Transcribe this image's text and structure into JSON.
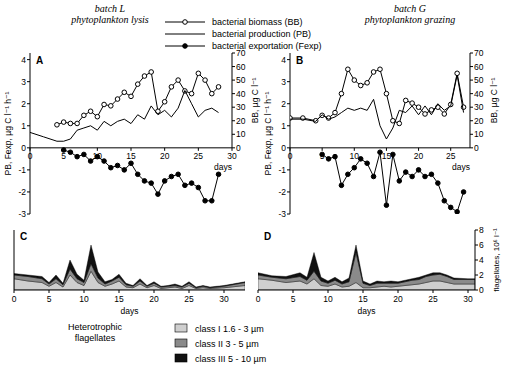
{
  "chart_data": [
    {
      "type": "line",
      "title": "batch L",
      "subtitle": "phytoplankton lysis",
      "annotations": [
        "A"
      ],
      "xlabel": "days",
      "ylabel": "PB, Fexp, µg C l⁻¹ h⁻¹",
      "y2label": "BB, µg C l⁻¹",
      "xlim": [
        0,
        30
      ],
      "xticks": [
        0,
        5,
        10,
        15,
        20,
        25,
        30
      ],
      "ylim": [
        -3,
        4.3
      ],
      "yticks": [
        -3,
        -2,
        -1,
        0,
        1,
        2,
        3,
        4
      ],
      "y2lim": [
        0,
        70
      ],
      "y2ticks": [
        0,
        10,
        20,
        30,
        40,
        50,
        60,
        70
      ],
      "legend": "top",
      "series": [
        {
          "name": "bacterial biomass (BB)",
          "axis": "y2",
          "color": "#000000",
          "marker": "open-circle",
          "line_style": "solid",
          "x": [
            4,
            5,
            6,
            7,
            8,
            9,
            10,
            11,
            12,
            13,
            14,
            15,
            16,
            17,
            18,
            19,
            20,
            21,
            22,
            23,
            24,
            25,
            26,
            27,
            28
          ],
          "values": [
            17,
            19,
            18,
            18,
            24,
            27,
            23,
            32,
            31,
            36,
            41,
            38,
            47,
            53,
            56,
            27,
            34,
            45,
            50,
            42,
            40,
            55,
            50,
            40,
            45
          ]
        },
        {
          "name": "bacterial production (PB)",
          "color": "#000000",
          "marker": "none",
          "line_style": "solid",
          "x": [
            0,
            2,
            4,
            5,
            6,
            7,
            8,
            9,
            10,
            11,
            12,
            13,
            14,
            15,
            16,
            17,
            18,
            19,
            20,
            21,
            22,
            23,
            24,
            25,
            26,
            27,
            28
          ],
          "values": [
            0.7,
            0.5,
            0.3,
            0.3,
            0.4,
            0.8,
            0.9,
            1.0,
            0.8,
            1.2,
            1.0,
            1.2,
            1.3,
            1.1,
            1.5,
            1.3,
            1.9,
            1.5,
            1.7,
            1.4,
            1.8,
            2.6,
            2.0,
            1.4,
            1.7,
            1.8,
            1.6
          ]
        },
        {
          "name": "bacterial exportation (Fexp)",
          "color": "#000000",
          "marker": "filled-circle",
          "line_style": "solid",
          "x": [
            5,
            6,
            7,
            8,
            9,
            10,
            11,
            12,
            13,
            14,
            15,
            16,
            17,
            18,
            19,
            20,
            21,
            22,
            23,
            24,
            25,
            26,
            27,
            28
          ],
          "values": [
            -0.1,
            -0.2,
            -0.4,
            -0.3,
            -0.6,
            -0.4,
            -0.6,
            -0.9,
            -0.8,
            -1.0,
            -0.7,
            -1.2,
            -1.5,
            -1.6,
            -2.1,
            -1.5,
            -1.3,
            -1.2,
            -1.7,
            -1.6,
            -1.8,
            -2.4,
            -2.4,
            -1.2
          ]
        }
      ]
    },
    {
      "type": "line",
      "title": "batch G",
      "subtitle": "phytoplankton grazing",
      "annotations": [
        "B"
      ],
      "xlabel": "days",
      "ylabel": "PB, Fexp, µg C l⁻¹ h⁻¹",
      "y2label": "BB, µg C l⁻¹",
      "xlim": [
        0,
        28
      ],
      "xticks": [
        0,
        5,
        10,
        15,
        20,
        25
      ],
      "ylim": [
        -3,
        4.3
      ],
      "yticks": [
        -3,
        -2,
        -1,
        0,
        1,
        2,
        3,
        4
      ],
      "y2lim": [
        0,
        70
      ],
      "y2ticks": [
        0,
        10,
        20,
        30,
        40,
        50,
        60,
        70
      ],
      "series": [
        {
          "axis": "y2",
          "color": "#000000",
          "marker": "open-circle",
          "line_style": "solid",
          "x": [
            0,
            2,
            4,
            5,
            6,
            7,
            8,
            9,
            10,
            11,
            12,
            13,
            14,
            15,
            16,
            17,
            18,
            19,
            20,
            21,
            22,
            23,
            24,
            25,
            26,
            27
          ],
          "values": [
            22,
            22,
            20,
            24,
            22,
            26,
            40,
            58,
            50,
            46,
            48,
            56,
            58,
            40,
            20,
            18,
            35,
            33,
            30,
            25,
            28,
            30,
            25,
            32,
            55,
            30
          ]
        },
        {
          "color": "#000000",
          "marker": "none",
          "line_style": "solid",
          "x": [
            0,
            2,
            4,
            5,
            6,
            7,
            8,
            9,
            10,
            11,
            12,
            13,
            14,
            15,
            16,
            17,
            18,
            19,
            20,
            21,
            22,
            23,
            24,
            25,
            26,
            27
          ],
          "values": [
            1.3,
            1.3,
            1.2,
            1.5,
            1.3,
            1.4,
            1.6,
            1.8,
            1.7,
            1.8,
            1.7,
            2.2,
            1.0,
            0.4,
            0.9,
            1.7,
            1.6,
            1.9,
            1.5,
            1.9,
            1.5,
            2.0,
            1.7,
            1.9,
            3.3,
            1.6
          ]
        },
        {
          "color": "#000000",
          "marker": "filled-circle",
          "line_style": "solid",
          "x": [
            5,
            6,
            7,
            8,
            9,
            10,
            11,
            12,
            13,
            14,
            15,
            16,
            17,
            18,
            19,
            20,
            21,
            22,
            23,
            24,
            25,
            26,
            27
          ],
          "values": [
            -0.3,
            -0.5,
            -0.4,
            -1.7,
            -1.2,
            -0.9,
            -0.5,
            -0.7,
            -1.3,
            -0.2,
            -2.6,
            -0.3,
            -1.5,
            -1.1,
            -1.3,
            -1.0,
            -1.3,
            -1.2,
            -1.6,
            -2.4,
            -2.7,
            -2.9,
            -2.0
          ]
        }
      ]
    },
    {
      "type": "area",
      "stacked": true,
      "annotations": [
        "C",
        "Heterotrophic",
        "flagellates"
      ],
      "xlabel": "days",
      "tick_labels": "x",
      "legend": "bottom",
      "xlim": [
        0,
        33
      ],
      "xticks": [
        0,
        5,
        10,
        15,
        20,
        25,
        30
      ],
      "ylim": [
        0,
        8
      ],
      "x": [
        0,
        2,
        4,
        5,
        6,
        7,
        8,
        9,
        10,
        11,
        12,
        13,
        14,
        15,
        16,
        17,
        18,
        19,
        20,
        21,
        22,
        23,
        24,
        25,
        26,
        27,
        28,
        30,
        33
      ],
      "series": [
        {
          "name": "class I 1.6 - 3 µm",
          "color": "#cfcfcf",
          "values": [
            1.5,
            1.2,
            1.0,
            0.5,
            1.0,
            0.4,
            2.0,
            1.0,
            0.6,
            2.5,
            1.0,
            0.5,
            0.8,
            1.2,
            0.4,
            0.3,
            0.8,
            0.3,
            0.6,
            0.2,
            0.3,
            0.4,
            0.2,
            0.6,
            0.2,
            0.3,
            0.2,
            0.3,
            0.6
          ]
        },
        {
          "name": "class II 3 - 5 µm",
          "color": "#8a8a8a",
          "values": [
            0.5,
            0.6,
            0.5,
            0.3,
            0.5,
            0.3,
            0.8,
            0.5,
            0.4,
            1.0,
            0.6,
            0.3,
            0.4,
            0.5,
            0.3,
            0.2,
            0.4,
            0.2,
            0.3,
            0.2,
            0.2,
            0.2,
            0.2,
            0.3,
            0.1,
            0.2,
            0.1,
            0.2,
            0.4
          ]
        },
        {
          "name": "class III 5 - 10 µm",
          "color": "#111111",
          "values": [
            0.2,
            0.2,
            0.3,
            0.2,
            0.5,
            0.2,
            1.2,
            0.6,
            0.3,
            2.5,
            0.8,
            0.3,
            0.2,
            0.4,
            0.2,
            0.1,
            0.3,
            0.1,
            0.2,
            0.1,
            0.1,
            0.2,
            0.1,
            0.2,
            0.1,
            0.1,
            0.1,
            0.1,
            0.1
          ]
        }
      ]
    },
    {
      "type": "area",
      "stacked": true,
      "annotations": [
        "D"
      ],
      "xlabel": "days",
      "ylabel": "flagellates, 10⁶ l⁻¹",
      "xlim": [
        0,
        31
      ],
      "xticks": [
        0,
        5,
        10,
        15,
        20,
        25,
        30
      ],
      "ylim": [
        0,
        8
      ],
      "yticks": [
        0,
        2,
        4,
        6,
        8
      ],
      "x": [
        0,
        2,
        4,
        6,
        7,
        8,
        9,
        10,
        11,
        12,
        13,
        14,
        15,
        16,
        17,
        18,
        19,
        20,
        21,
        22,
        23,
        24,
        25,
        26,
        27,
        28,
        30,
        31
      ],
      "series": [
        {
          "color": "#cfcfcf",
          "values": [
            1.5,
            1.3,
            1.0,
            1.2,
            0.8,
            1.5,
            0.6,
            0.5,
            0.8,
            0.4,
            0.5,
            1.0,
            0.3,
            0.3,
            0.4,
            0.5,
            0.4,
            0.5,
            0.6,
            0.7,
            0.8,
            1.0,
            1.2,
            1.2,
            1.0,
            0.8,
            0.8,
            0.8
          ]
        },
        {
          "color": "#8a8a8a",
          "values": [
            0.5,
            0.4,
            0.5,
            0.6,
            0.5,
            1.0,
            0.6,
            0.4,
            0.5,
            0.4,
            0.6,
            4.0,
            0.6,
            0.3,
            0.5,
            0.4,
            0.5,
            0.4,
            0.5,
            0.6,
            0.6,
            0.8,
            0.8,
            0.9,
            0.8,
            0.6,
            0.6,
            0.6
          ]
        },
        {
          "color": "#111111",
          "values": [
            0.3,
            0.2,
            0.3,
            0.5,
            0.4,
            2.5,
            0.5,
            0.3,
            0.4,
            0.3,
            0.5,
            1.0,
            0.3,
            0.2,
            0.3,
            0.2,
            0.3,
            0.2,
            0.2,
            0.2,
            0.3,
            0.2,
            0.3,
            0.2,
            0.2,
            0.2,
            0.1,
            0.1
          ]
        }
      ]
    }
  ]
}
